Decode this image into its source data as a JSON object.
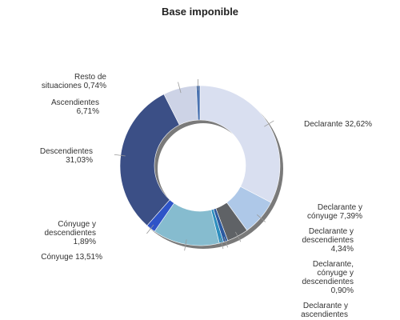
{
  "chart_data": {
    "type": "pie",
    "donut": true,
    "title": "Base imponible",
    "slices": [
      {
        "label": "Declarante 32,62%",
        "value": 32.62,
        "color": "#d9dff0"
      },
      {
        "label": "Declarante y cónyuge 7,39%",
        "value": 7.39,
        "color": "#aec8e8"
      },
      {
        "label": "Declarante y descendientes 4,34%",
        "value": 4.34,
        "color": "#5f6266"
      },
      {
        "label": "Declarante, cónyuge y descendientes 0,90%",
        "value": 0.9,
        "color": "#2c5aa0"
      },
      {
        "label": "Declarante y ascendientes",
        "value": 0.86,
        "color": "#2e8fbf"
      },
      {
        "label": "Cónyuge 13,51%",
        "value": 13.51,
        "color": "#86bccf"
      },
      {
        "label": "Cónyuge y descendientes 1,89%",
        "value": 1.89,
        "color": "#2e54c8"
      },
      {
        "label": "Descendientes 31,03%",
        "value": 31.03,
        "color": "#3b4f86"
      },
      {
        "label": "Ascendientes 6,71%",
        "value": 6.71,
        "color": "#cdd3e6"
      },
      {
        "label": "Resto de situaciones 0,74%",
        "value": 0.74,
        "color": "#4a72b0"
      }
    ]
  }
}
